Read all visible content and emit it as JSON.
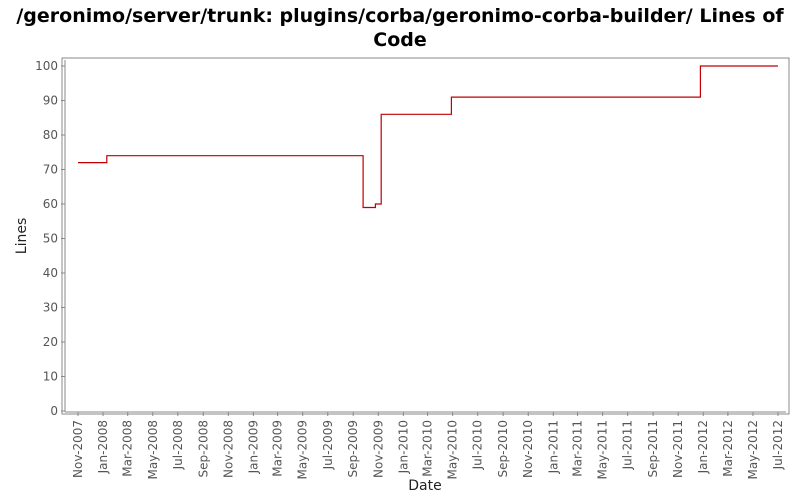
{
  "chart_data": {
    "type": "line",
    "title": "/geronimo/server/trunk: plugins/corba/geronimo-corba-builder/ Lines of Code",
    "xlabel": "Date",
    "ylabel": "Lines",
    "ylim": [
      0,
      100
    ],
    "y_ticks": [
      "0",
      "10",
      "20",
      "30",
      "40",
      "50",
      "60",
      "70",
      "80",
      "90",
      "100"
    ],
    "x_ticks": [
      "Nov-2007",
      "Jan-2008",
      "Mar-2008",
      "May-2008",
      "Jul-2008",
      "Sep-2008",
      "Nov-2008",
      "Jan-2009",
      "Mar-2009",
      "May-2009",
      "Jul-2009",
      "Sep-2009",
      "Nov-2009",
      "Jan-2010",
      "Mar-2010",
      "May-2010",
      "Jul-2010",
      "Sep-2010",
      "Nov-2010",
      "Jan-2011",
      "Mar-2011",
      "May-2011",
      "Jul-2011",
      "Sep-2011",
      "Nov-2011",
      "Jan-2012",
      "Mar-2012",
      "May-2012",
      "Jul-2012"
    ],
    "step": true,
    "grid": false,
    "line_color": "#c00000",
    "series": [
      {
        "x": [
          "2007-11-01",
          "2008-01-10",
          "2009-09-25",
          "2009-10-25",
          "2009-11-08",
          "2010-04-28",
          "2011-12-25",
          "2012-07-01"
        ],
        "y": [
          72,
          74,
          59,
          60,
          86,
          91,
          100,
          100
        ]
      }
    ]
  }
}
